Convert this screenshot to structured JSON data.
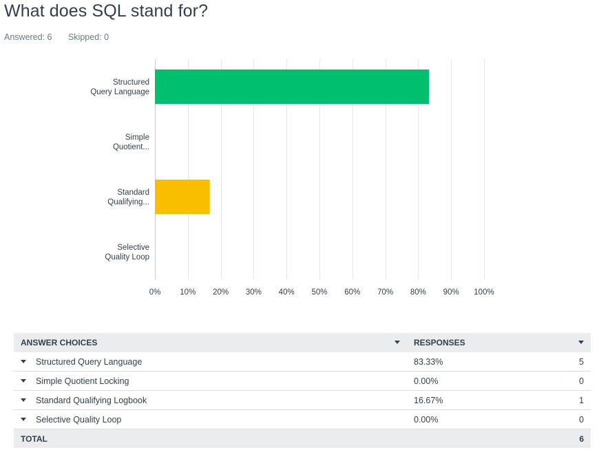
{
  "question": {
    "title": "What does SQL stand for?",
    "answered": "Answered: 6",
    "skipped": "Skipped: 0"
  },
  "chart_data": {
    "type": "bar",
    "orientation": "horizontal",
    "categories": [
      [
        "Structured",
        "Query Language"
      ],
      [
        "Simple",
        "Quotient..."
      ],
      [
        "Standard",
        "Qualifying..."
      ],
      [
        "Selective",
        "Quality Loop"
      ]
    ],
    "values": [
      83.33,
      0,
      16.67,
      0
    ],
    "colors": [
      "#00bf6f",
      "#00bf6f",
      "#f9be00",
      "#f9be00"
    ],
    "xlim": [
      0,
      100
    ],
    "ticks": [
      "0%",
      "10%",
      "20%",
      "30%",
      "40%",
      "50%",
      "60%",
      "70%",
      "80%",
      "90%",
      "100%"
    ],
    "grid": true
  },
  "table": {
    "header_choices": "ANSWER CHOICES",
    "header_responses": "RESPONSES",
    "rows": [
      {
        "choice": "Structured Query Language",
        "percent": "83.33%",
        "count": "5"
      },
      {
        "choice": "Simple Quotient Locking",
        "percent": "0.00%",
        "count": "0"
      },
      {
        "choice": "Standard Qualifying Logbook",
        "percent": "16.67%",
        "count": "1"
      },
      {
        "choice": "Selective Quality Loop",
        "percent": "0.00%",
        "count": "0"
      }
    ],
    "total_label": "TOTAL",
    "total_count": "6"
  }
}
